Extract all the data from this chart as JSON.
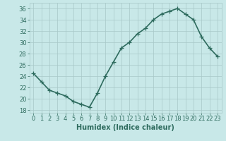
{
  "x": [
    0,
    1,
    2,
    3,
    4,
    5,
    6,
    7,
    8,
    9,
    10,
    11,
    12,
    13,
    14,
    15,
    16,
    17,
    18,
    19,
    20,
    21,
    22,
    23
  ],
  "y": [
    24.5,
    23.0,
    21.5,
    21.0,
    20.5,
    19.5,
    19.0,
    18.5,
    21.0,
    24.0,
    26.5,
    29.0,
    30.0,
    31.5,
    32.5,
    34.0,
    35.0,
    35.5,
    36.0,
    35.0,
    34.0,
    31.0,
    29.0,
    27.5
  ],
  "line_color": "#2e6b5e",
  "marker": "+",
  "marker_size": 4,
  "bg_color": "#c8e8e8",
  "grid_color": "#a8c8c8",
  "xlabel": "Humidex (Indice chaleur)",
  "xlim": [
    -0.5,
    23.5
  ],
  "ylim": [
    17.5,
    37
  ],
  "yticks": [
    18,
    20,
    22,
    24,
    26,
    28,
    30,
    32,
    34,
    36
  ],
  "xticks": [
    0,
    1,
    2,
    3,
    4,
    5,
    6,
    7,
    8,
    9,
    10,
    11,
    12,
    13,
    14,
    15,
    16,
    17,
    18,
    19,
    20,
    21,
    22,
    23
  ],
  "xlabel_fontsize": 7,
  "tick_fontsize": 6,
  "line_width": 1.2
}
